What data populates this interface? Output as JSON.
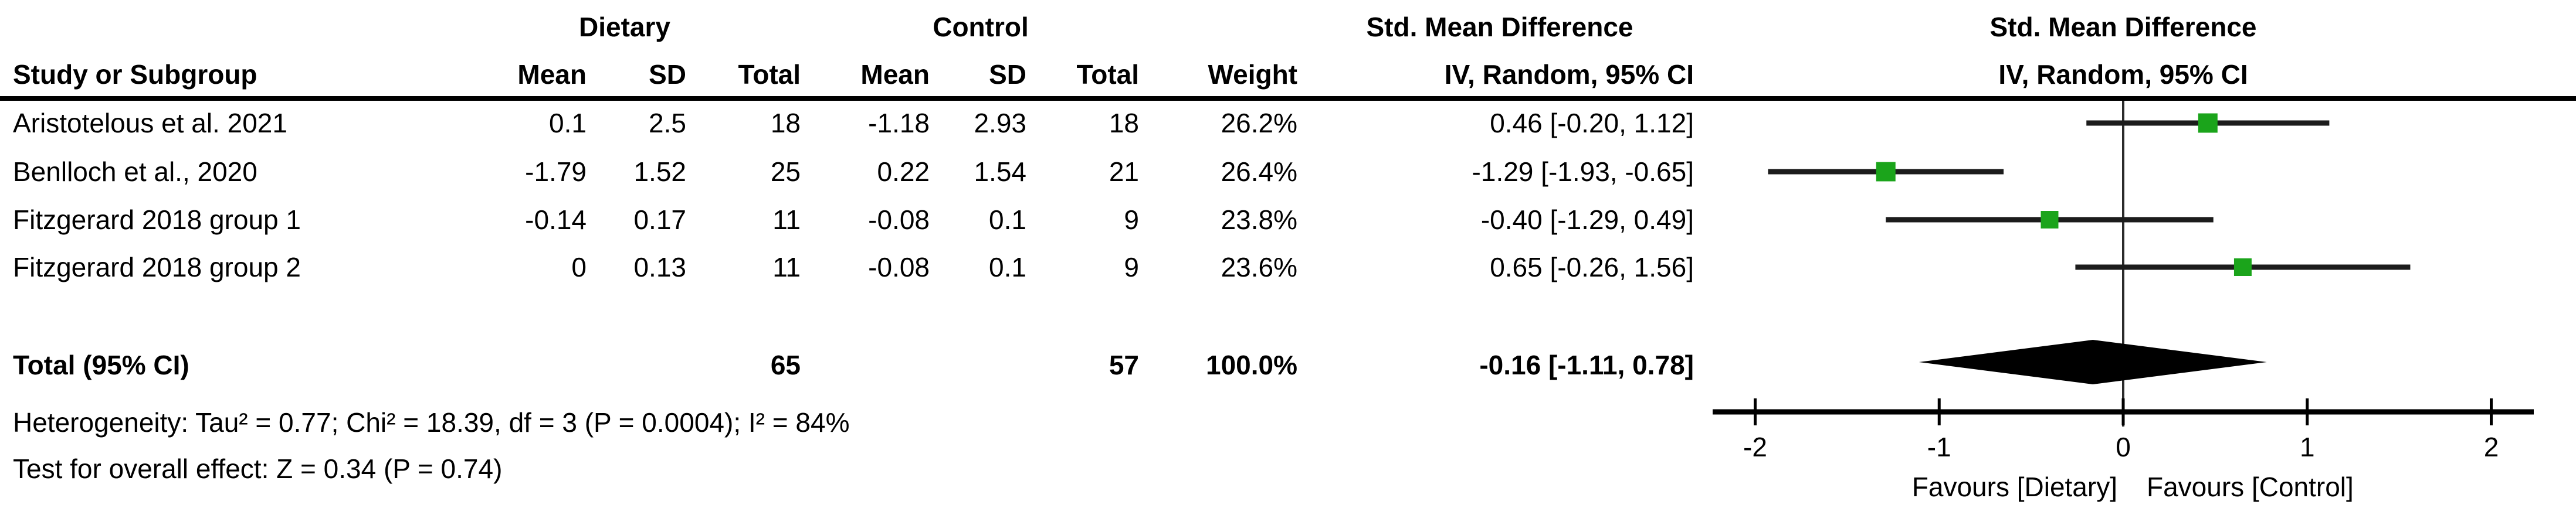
{
  "table": {
    "group_headers": {
      "dietary": "Dietary",
      "control": "Control",
      "smd_line1": "Std. Mean Difference",
      "smd_line2": "IV, Random, 95% CI"
    },
    "columns": {
      "study": "Study or Subgroup",
      "mean": "Mean",
      "sd": "SD",
      "total": "Total",
      "weight": "Weight",
      "ci": "IV, Random, 95% CI"
    },
    "rows": [
      {
        "study": "Aristotelous et al. 2021",
        "d_mean": "0.1",
        "d_sd": "2.5",
        "d_total": "18",
        "c_mean": "-1.18",
        "c_sd": "2.93",
        "c_total": "18",
        "weight": "26.2%",
        "ci_text": "0.46 [-0.20, 1.12]"
      },
      {
        "study": "Benlloch et al., 2020",
        "d_mean": "-1.79",
        "d_sd": "1.52",
        "d_total": "25",
        "c_mean": "0.22",
        "c_sd": "1.54",
        "c_total": "21",
        "weight": "26.4%",
        "ci_text": "-1.29 [-1.93, -0.65]"
      },
      {
        "study": "Fitzgerard 2018 group 1",
        "d_mean": "-0.14",
        "d_sd": "0.17",
        "d_total": "11",
        "c_mean": "-0.08",
        "c_sd": "0.1",
        "c_total": "9",
        "weight": "23.8%",
        "ci_text": "-0.40 [-1.29, 0.49]"
      },
      {
        "study": "Fitzgerard 2018 group 2",
        "d_mean": "0",
        "d_sd": "0.13",
        "d_total": "11",
        "c_mean": "-0.08",
        "c_sd": "0.1",
        "c_total": "9",
        "weight": "23.6%",
        "ci_text": "0.65 [-0.26, 1.56]"
      }
    ],
    "total_row": {
      "label": "Total (95% CI)",
      "d_total": "65",
      "c_total": "57",
      "weight": "100.0%",
      "ci_text": "-0.16 [-1.11, 0.78]"
    },
    "heterogeneity": "Heterogeneity: Tau² = 0.77; Chi² = 18.39, df = 3 (P = 0.0004); I² = 84%",
    "overall_effect": "Test for overall effect: Z = 0.34 (P = 0.74)"
  },
  "chart_data": {
    "type": "forest",
    "title_line1": "Std. Mean Difference",
    "title_line2": "IV, Random, 95% CI",
    "effect_measure": "Std. Mean Difference, IV, Random, 95% CI",
    "studies": [
      {
        "name": "Aristotelous et al. 2021",
        "smd": 0.46,
        "ci_low": -0.2,
        "ci_high": 1.12,
        "weight_pct": 26.2
      },
      {
        "name": "Benlloch et al., 2020",
        "smd": -1.29,
        "ci_low": -1.93,
        "ci_high": -0.65,
        "weight_pct": 26.4
      },
      {
        "name": "Fitzgerard 2018 group 1",
        "smd": -0.4,
        "ci_low": -1.29,
        "ci_high": 0.49,
        "weight_pct": 23.8
      },
      {
        "name": "Fitzgerard 2018 group 2",
        "smd": 0.65,
        "ci_low": -0.26,
        "ci_high": 1.56,
        "weight_pct": 23.6
      }
    ],
    "total": {
      "label": "Total (95% CI)",
      "smd": -0.16,
      "ci_low": -1.11,
      "ci_high": 0.78
    },
    "axis": {
      "ticks": [
        -2,
        -1,
        0,
        1,
        2
      ],
      "tick_labels": [
        "-2",
        "-1",
        "0",
        "1",
        "2"
      ],
      "xlim": [
        -2.23,
        2.23
      ],
      "grid": false
    },
    "favours_left": "Favours [Dietary]",
    "favours_right": "Favours [Control]",
    "marker_color": "#1BA41B",
    "line_color": "#1c1c1c",
    "diamond_color": "#000000"
  }
}
